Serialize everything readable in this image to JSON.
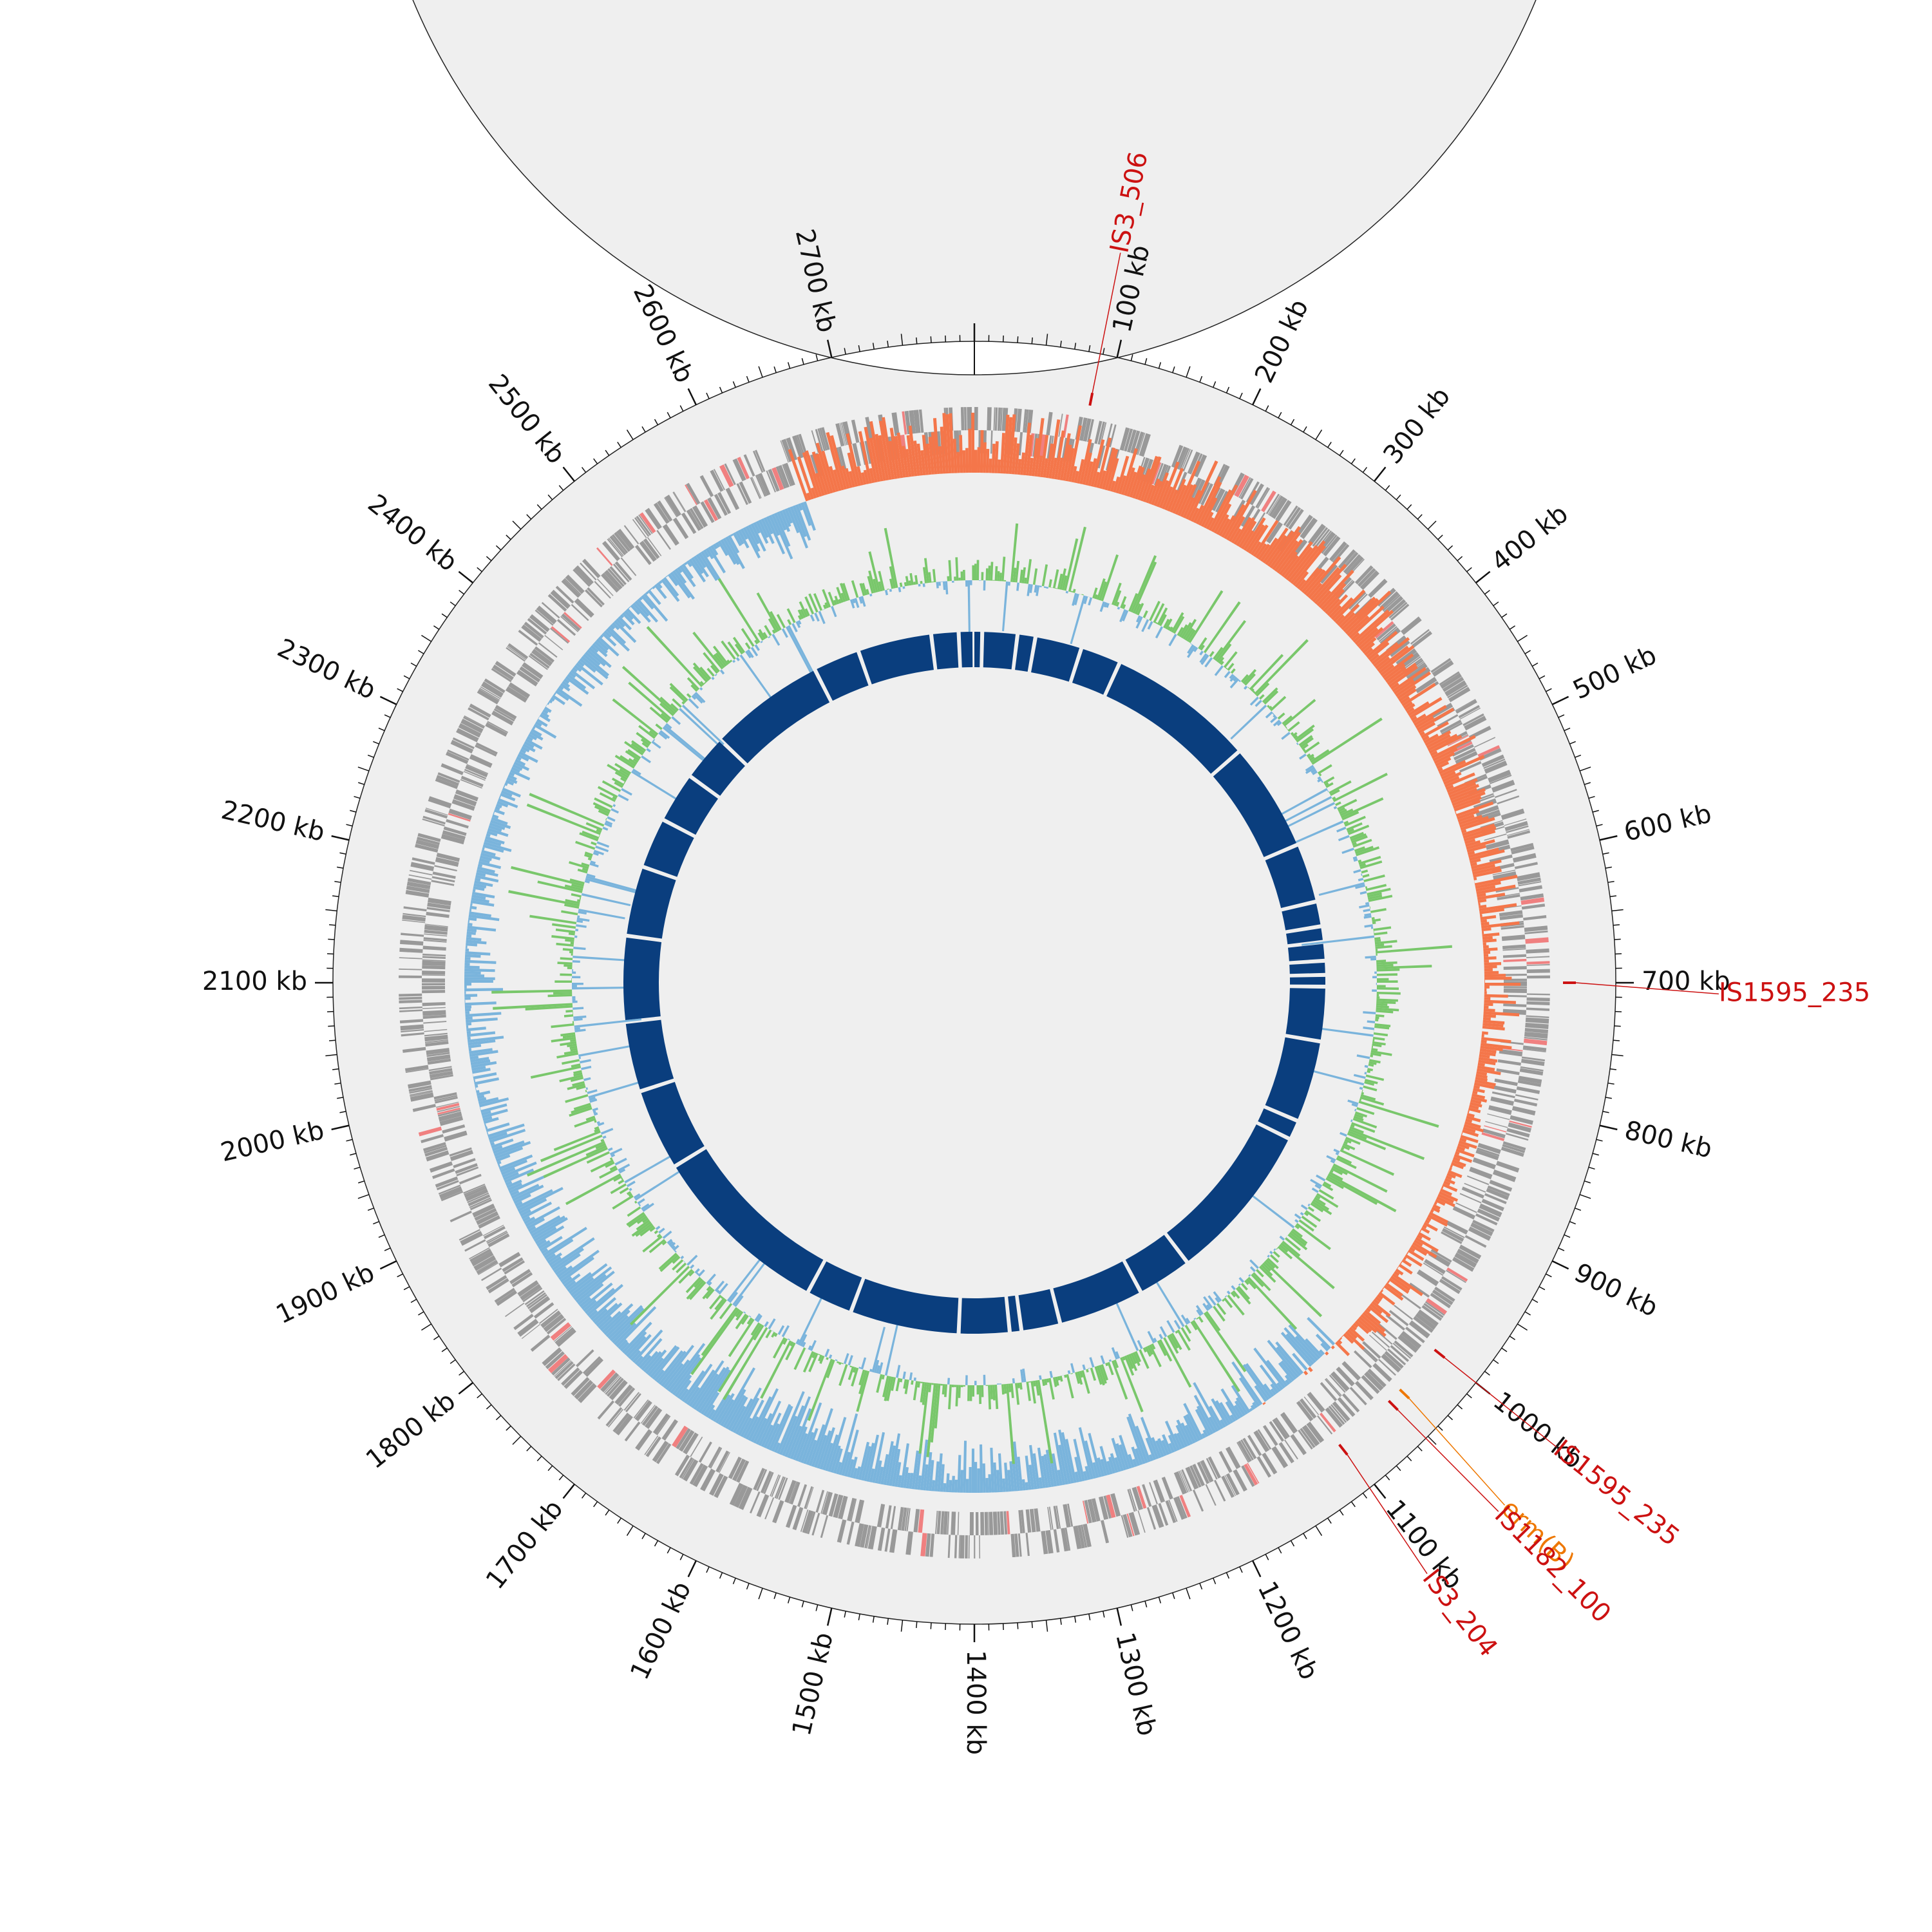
{
  "chart_data": {
    "type": "circular-genome-map",
    "genome_length_kb": 2800,
    "position_unit": "kb",
    "tick_labels": [
      "100 kb",
      "200 kb",
      "300 kb",
      "400 kb",
      "500 kb",
      "600 kb",
      "700 kb",
      "800 kb",
      "900 kb",
      "1000 kb",
      "1100 kb",
      "1200 kb",
      "1300 kb",
      "1400 kb",
      "1500 kb",
      "1600 kb",
      "1700 kb",
      "1800 kb",
      "1900 kb",
      "2000 kb",
      "2100 kb",
      "2200 kb",
      "2300 kb",
      "2400 kb",
      "2500 kb",
      "2600 kb",
      "2700 kb"
    ],
    "tick_positions_kb": [
      100,
      200,
      300,
      400,
      500,
      600,
      700,
      800,
      900,
      1000,
      1100,
      1200,
      1300,
      1400,
      1500,
      1600,
      1700,
      1800,
      1900,
      2000,
      2100,
      2200,
      2300,
      2400,
      2500,
      2600,
      2700
    ],
    "features": [
      {
        "name": "IS3_506",
        "position_kb": 88,
        "category": "insertion_sequence"
      },
      {
        "name": "IS1595_235",
        "position_kb": 700,
        "category": "insertion_sequence"
      },
      {
        "name": "IS1595_235",
        "position_kb": 1000,
        "category": "insertion_sequence"
      },
      {
        "name": "erm(B)",
        "position_kb": 1040,
        "category": "resistance_gene"
      },
      {
        "name": "IS1182_100",
        "position_kb": 1052,
        "category": "insertion_sequence"
      },
      {
        "name": "IS3_204",
        "position_kb": 1102,
        "category": "insertion_sequence"
      }
    ],
    "tracks": [
      {
        "name": "genes",
        "description": "forward/reverse strand CDS"
      },
      {
        "name": "gc_skew",
        "positive_color": "#f4764a",
        "negative_color": "#7ab4dc"
      },
      {
        "name": "gc_content",
        "positive_color": "#79c76b",
        "negative_color": "#7ab4dc"
      },
      {
        "name": "contigs",
        "color": "#0a3e7e"
      }
    ],
    "contig_gaps_kb": [
      10,
      55,
      78,
      138,
      190,
      380,
      520,
      596,
      628,
      648,
      672,
      690,
      705,
      775,
      880,
      905,
      1110,
      1180,
      1290,
      1340,
      1355,
      1420,
      1560,
      1620,
      1855,
      1960,
      2050,
      2160,
      2250,
      2315,
      2380,
      2440,
      2590,
      2650,
      2745,
      2780
    ]
  },
  "colors": {
    "ideogram_fill": "#efefef",
    "gene_color": "#999999",
    "gene_highlight": "#f08080",
    "skew_positive": "#f4764a",
    "skew_negative": "#7ab4dc",
    "gc_positive": "#79c76b",
    "gc_negative": "#7ab4dc",
    "contig_color": "#0a3e7e",
    "is_label": "#cc1111",
    "arg_label": "#ee7700",
    "axis": "#111111"
  }
}
